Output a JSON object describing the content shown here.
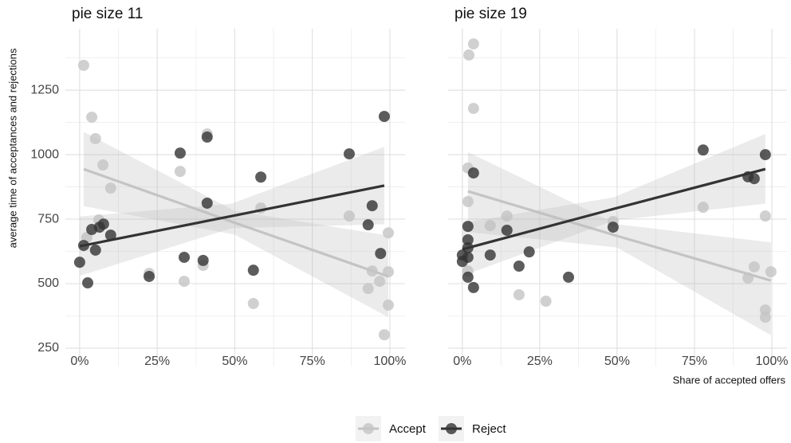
{
  "chart_data": [
    {
      "type": "scatter",
      "title": "pie size 11",
      "ylabel": "average time of acceptances and rejections",
      "xlim": [
        -4.6,
        104.9
      ],
      "ylim": [
        179,
        1488
      ],
      "xticks": [
        {
          "value": 0,
          "label": "0%"
        },
        {
          "value": 25,
          "label": "25%"
        },
        {
          "value": 50,
          "label": "50%"
        },
        {
          "value": 75,
          "label": "75%"
        },
        {
          "value": 100,
          "label": "100%"
        }
      ],
      "yticks": [
        250,
        500,
        750,
        1000,
        1250
      ],
      "xminor": [
        12.5,
        37.5,
        62.5,
        87.5
      ],
      "yminor": [
        375,
        625,
        875,
        1125,
        1375
      ],
      "grid": true,
      "legend": "bottom",
      "series": [
        {
          "name": "Accept",
          "color": "#c4c4c4",
          "x": [
            1.3,
            3.9,
            5.1,
            7.5,
            10,
            6.2,
            2.3,
            22.4,
            32.4,
            33.7,
            41.1,
            39.8,
            58.4,
            56,
            86.9,
            93,
            94.3,
            96.7,
            99.5,
            99.5,
            98.2,
            99.5
          ],
          "values": [
            1346,
            1145,
            1062,
            960,
            870,
            747,
            679,
            540,
            935,
            509,
            1080,
            571,
            793,
            423,
            762,
            481,
            549,
            509,
            697,
            417,
            302,
            546
          ],
          "trend": {
            "x": [
              1.3,
              50,
              99.5
            ],
            "values": [
              944,
              736,
              528
            ],
            "lower": [
              800,
              690,
              370
            ],
            "upper": [
              1088,
              782,
              686
            ]
          }
        },
        {
          "name": "Reject",
          "color": "#333333",
          "x": [
            0,
            1.3,
            2.6,
            3.9,
            5.1,
            6.4,
            7.7,
            10,
            22.4,
            32.4,
            33.7,
            41.1,
            41.1,
            39.8,
            58.4,
            56,
            86.9,
            93,
            94.3,
            97,
            98.2
          ],
          "values": [
            583,
            648,
            503,
            710,
            630,
            719,
            731,
            688,
            528,
            1006,
            602,
            1068,
            812,
            590,
            913,
            552,
            1003,
            728,
            802,
            617,
            1148
          ],
          "trend": {
            "x": [
              0,
              49,
              98.2
            ],
            "values": [
              645,
              762,
              880
            ],
            "lower": [
              530,
              715,
              730
            ],
            "upper": [
              760,
              810,
              1030
            ]
          }
        }
      ]
    },
    {
      "type": "scatter",
      "title": "pie size 19",
      "xlabel": "Share of accepted offers",
      "xlim": [
        -4.6,
        104.9
      ],
      "ylim": [
        179,
        1488
      ],
      "xticks": [
        {
          "value": 0,
          "label": "0%"
        },
        {
          "value": 25,
          "label": "25%"
        },
        {
          "value": 50,
          "label": "50%"
        },
        {
          "value": 75,
          "label": "75%"
        },
        {
          "value": 100,
          "label": "100%"
        }
      ],
      "yticks": [
        250,
        500,
        750,
        1000,
        1250
      ],
      "xminor": [
        12.5,
        37.5,
        62.5,
        87.5
      ],
      "yminor": [
        375,
        625,
        875,
        1125,
        1375
      ],
      "grid": true,
      "series": [
        {
          "color": "#c4c4c4",
          "x": [
            2.1,
            3.6,
            3.6,
            1.8,
            1.8,
            1.8,
            9,
            14.4,
            18.3,
            27,
            48.7,
            77.8,
            92.3,
            94.3,
            97.9,
            97.9,
            97.9,
            99.7
          ],
          "values": [
            1386,
            1429,
            1179,
            948,
            818,
            549,
            725,
            762,
            457,
            432,
            741,
            796,
            522,
            565,
            762,
            398,
            370,
            546
          ],
          "trend": {
            "x": [
              1.8,
              50,
              99.7
            ],
            "values": [
              858,
              685,
              512
            ],
            "lower": [
              700,
              640,
              300
            ],
            "upper": [
              1010,
              730,
              660
            ]
          }
        },
        {
          "color": "#333333",
          "x": [
            0,
            0,
            1.8,
            1.8,
            1.8,
            1.8,
            1.8,
            3.6,
            3.6,
            9,
            14.4,
            18.3,
            21.6,
            34.3,
            48.7,
            77.8,
            92.3,
            94.3,
            97.9
          ],
          "values": [
            611,
            586,
            722,
            670,
            639,
            602,
            525,
            929,
            485,
            611,
            707,
            568,
            623,
            525,
            719,
            1018,
            914,
            907,
            1000
          ],
          "trend": {
            "x": [
              0,
              49,
              97.9
            ],
            "values": [
              633,
              790,
              944
            ],
            "lower": [
              530,
              745,
              810
            ],
            "upper": [
              735,
              835,
              1080
            ]
          }
        }
      ]
    }
  ]
}
